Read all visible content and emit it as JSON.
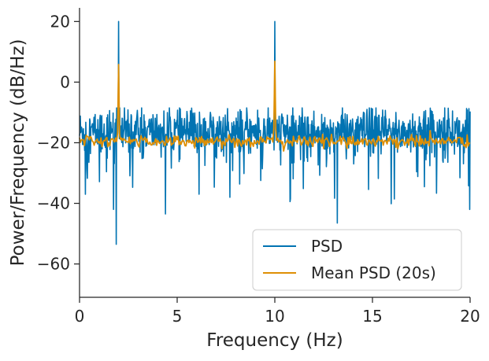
{
  "chart_data": {
    "type": "line",
    "xlabel": "Frequency (Hz)",
    "ylabel": "Power/Frequency (dB/Hz)",
    "xlim": [
      0,
      20
    ],
    "ylim": [
      -71,
      24.5
    ],
    "x_ticks": [
      0,
      5,
      10,
      15,
      20
    ],
    "x_tick_labels": [
      "0",
      "5",
      "10",
      "15",
      "20"
    ],
    "y_ticks": [
      20,
      0,
      -20,
      -40,
      -60
    ],
    "y_tick_labels": [
      "20",
      "0",
      "−20",
      "−40",
      "−60"
    ],
    "grid": false,
    "legend_position": "lower-right",
    "series": [
      {
        "name": "PSD",
        "color": "#0173b2",
        "peaks": [
          {
            "x": 2.0,
            "y": 20.0
          },
          {
            "x": 10.0,
            "y": 20.0
          }
        ],
        "noise_floor_mean_db": -16.5,
        "notable_dips": [
          {
            "x": 1.88,
            "y": -53.5
          },
          {
            "x": 1.75,
            "y": -42.0
          },
          {
            "x": 4.4,
            "y": -43.5
          },
          {
            "x": 13.2,
            "y": -46.5
          },
          {
            "x": 7.7,
            "y": -38.0
          },
          {
            "x": 10.8,
            "y": -38.5
          },
          {
            "x": 0.3,
            "y": -37.0
          }
        ]
      },
      {
        "name": "Mean PSD (20s)",
        "color": "#de8f05",
        "peaks": [
          {
            "x": 2.0,
            "y": 4.5
          },
          {
            "x": 10.0,
            "y": 4.5
          }
        ],
        "baseline_db": -19.5
      }
    ]
  }
}
